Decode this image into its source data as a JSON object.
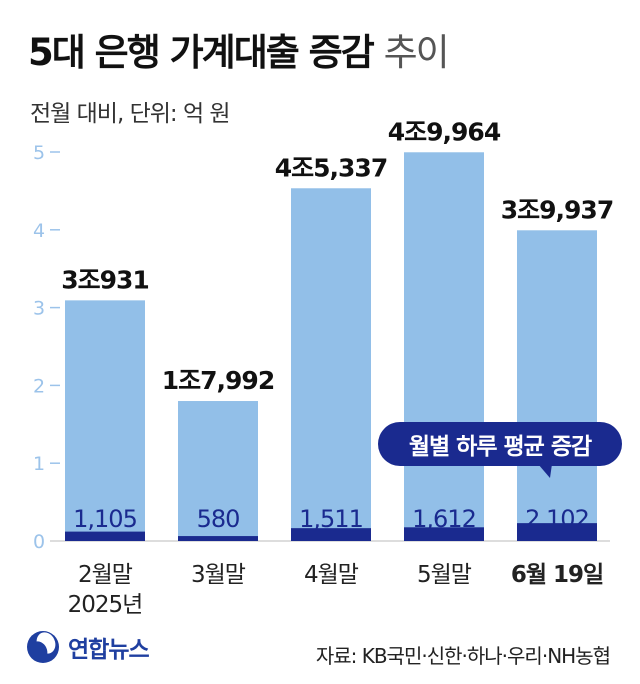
{
  "title": "5대 은행 가계대출 증감",
  "title_suffix": "추이",
  "subtitle": "전월 대비, 단위: 억 원",
  "callout": "월별 하루 평균 증감",
  "source": "자료: KB국민·신한·하나·우리·NH농협",
  "logo_text": "연합뉴스",
  "colors": {
    "total_bar": "#92bfe8",
    "daily_bar": "#1a2a8f",
    "daily_label": "#1a2a8f",
    "axis": "#9cc3ea"
  },
  "chart_data": {
    "type": "bar",
    "categories": [
      "2월말",
      "3월말",
      "4월말",
      "5월말",
      "6월 19일"
    ],
    "category_sublabels": [
      "2025년",
      "",
      "",
      "",
      ""
    ],
    "y_ticks": [
      "0",
      "1",
      "2",
      "3",
      "4",
      "5"
    ],
    "ylim": [
      0,
      5.2
    ],
    "grid": false,
    "series": [
      {
        "values": [
          3.0931,
          1.7992,
          4.5337,
          4.9964,
          3.9937
        ],
        "labels": [
          "3조931",
          "1조7,992",
          "4조5,337",
          "4조9,964",
          "3조9,937"
        ]
      },
      {
        "name": "월별 하루 평균 증감",
        "values": [
          1105,
          580,
          1511,
          1612,
          2102
        ],
        "labels": [
          "1,105",
          "580",
          "1,511",
          "1,612",
          "2,102"
        ]
      }
    ]
  }
}
